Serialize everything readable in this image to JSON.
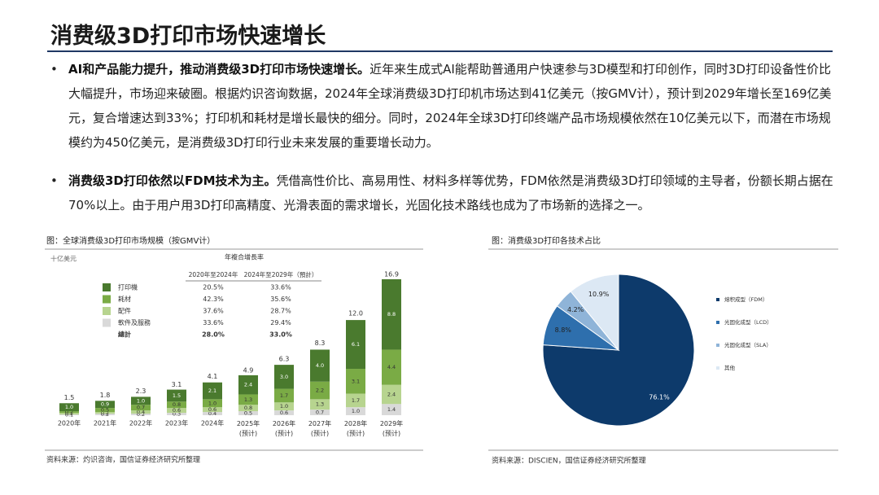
{
  "title": "消费级3D打印市场快速增长",
  "bullets": [
    {
      "lead": "AI和产品能力提升，推动消费级3D打印市场快速增长。",
      "text": "近年来生成式AI能帮助普通用户快速参与3D模型和打印创作，同时3D打印设备性价比大幅提升，市场迎来破圈。根据灼识咨询数据，2024年全球消费级3D打印机市场达到41亿美元（按GMV计），预计到2029年增长至169亿美元，复合增速达到33%；打印机和耗材是增长最快的细分。同时，2024年全球3D打印终端产品市场规模依然在10亿美元以下，而潜在市场规模约为450亿美元，是消费级3D打印行业未来发展的重要增长动力。"
    },
    {
      "lead": "消费级3D打印依然以FDM技术为主。",
      "text": "凭借高性价比、高易用性、材料多样等优势，FDM依然是消费级3D打印领域的主导者，份额长期占据在70%以上。由于用户用3D打印高精度、光滑表面的需求增长，光固化技术路线也成为了市场新的选择之一。"
    }
  ],
  "chart_data": [
    {
      "type": "bar",
      "stacked": true,
      "title": "图：全球消费级3D打印市场规模（按GMV计）",
      "unit": "十亿美元",
      "source": "资料来源：灼识咨询，国信证券经济研究所整理",
      "categories": [
        "2020年",
        "2021年",
        "2022年",
        "2023年",
        "2024年",
        "2025年(预计)",
        "2026年(预计)",
        "2027年(预计)",
        "2028年(预计)",
        "2029年(预计)"
      ],
      "ylim": [
        0,
        17
      ],
      "series": [
        {
          "name": "软件及服务",
          "color": "#d9d9d9",
          "values": [
            0.1,
            0.2,
            0.2,
            0.3,
            0.4,
            0.5,
            0.6,
            0.7,
            1.0,
            1.4
          ],
          "value_labels": [
            "0.1",
            "0.2",
            "0.2",
            "0.3",
            "0.4",
            "0.5",
            "0.6",
            "0.7",
            "1.0",
            "1.4"
          ]
        },
        {
          "name": "配件",
          "color": "#b7d48f",
          "values": [
            0.2,
            0.2,
            0.4,
            0.6,
            0.6,
            0.8,
            1.0,
            1.3,
            1.7,
            2.4
          ],
          "value_labels": [
            "0.2",
            "0.2",
            "0.4",
            "0.6",
            "0.6",
            "0.8",
            "1.0",
            "1.3",
            "1.7",
            "2.4"
          ]
        },
        {
          "name": "耗材",
          "color": "#7aab45",
          "values": [
            0.2,
            0.5,
            0.7,
            0.8,
            1.0,
            1.3,
            1.7,
            2.2,
            3.1,
            4.4
          ],
          "value_labels": [
            "0.2",
            "0.5",
            "0.7",
            "0.8",
            "1.0",
            "1.3",
            "1.7",
            "2.2",
            "3.1",
            "4.4"
          ]
        },
        {
          "name": "打印机",
          "color": "#4a7a2e",
          "values": [
            1.0,
            0.9,
            1.0,
            1.5,
            2.1,
            2.4,
            3.0,
            4.0,
            6.1,
            8.8
          ],
          "value_labels": [
            "1.0",
            "0.9",
            "1.0",
            "1.5",
            "2.1",
            "2.4",
            "3.0",
            "4.0",
            "6.1",
            "8.8"
          ]
        }
      ],
      "totals": [
        1.5,
        1.8,
        2.3,
        3.1,
        4.1,
        4.9,
        6.3,
        8.3,
        12.0,
        16.9
      ],
      "total_labels": [
        "1.5",
        "1.8",
        "2.3",
        "3.1",
        "4.1",
        "4.9",
        "6.3",
        "8.3",
        "12.0",
        "16.9"
      ],
      "cagr_title": "年複合增長率",
      "cagr_columns": [
        "2020年至2024年",
        "2024年至2029年（預計）"
      ],
      "cagr_rows": [
        [
          "20.5%",
          "33.6%"
        ],
        [
          "42.3%",
          "35.6%"
        ],
        [
          "37.6%",
          "28.7%"
        ],
        [
          "33.6%",
          "29.4%"
        ],
        [
          "28.0%",
          "33.0%"
        ]
      ],
      "cagr_row_names": [
        "打印機",
        "耗材",
        "配件",
        "軟件及服務",
        "總計"
      ]
    },
    {
      "type": "pie",
      "title": "图：消费级3D打印各技术占比",
      "source": "资料来源：DISCIEN，国信证券经济研究所整理",
      "categories": [
        "熔积成型（FDM）",
        "光固化成型（LCD）",
        "光固化成型（SLA）",
        "其他"
      ],
      "values": [
        76.1,
        8.8,
        4.2,
        10.9
      ],
      "value_labels": [
        "76.1%",
        "8.8%",
        "4.2%",
        "10.9%"
      ],
      "colors": [
        "#0d3a6b",
        "#2e6fad",
        "#8fb4d8",
        "#dce8f4"
      ]
    }
  ]
}
